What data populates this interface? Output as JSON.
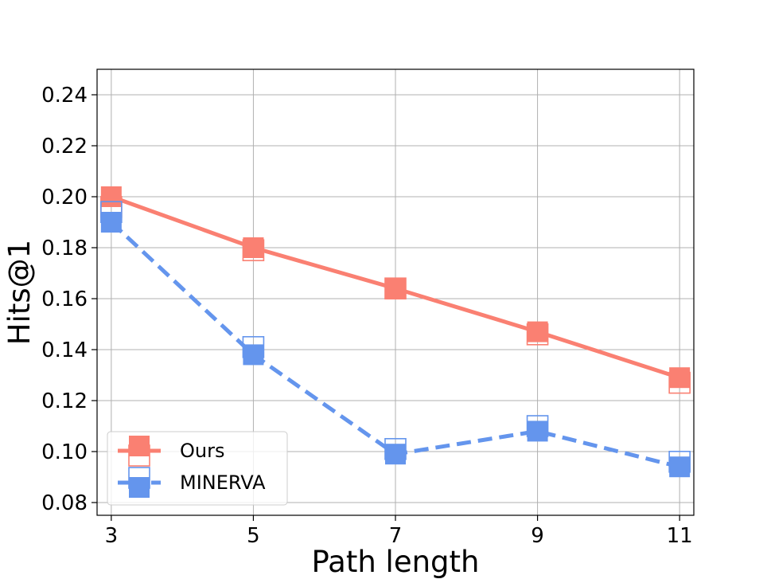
{
  "chart_data": {
    "type": "line",
    "title": "",
    "xlabel": "Path length",
    "ylabel": "Hits@1",
    "x": [
      3,
      5,
      7,
      9,
      11
    ],
    "xticks": [
      "3",
      "5",
      "7",
      "9",
      "11"
    ],
    "yticks": [
      "0.08",
      "0.10",
      "0.12",
      "0.14",
      "0.16",
      "0.18",
      "0.20",
      "0.22",
      "0.24"
    ],
    "xlim": [
      2.8,
      11.2
    ],
    "ylim": [
      0.075,
      0.25
    ],
    "grid": true,
    "legend_position": "lower-left",
    "series": [
      {
        "name": "Ours",
        "color": "#fa8072",
        "line_style": "solid",
        "marker": "square",
        "values": [
          0.2,
          0.18,
          0.164,
          0.147,
          0.129
        ],
        "hollow_values": [
          0.196,
          0.179,
          0.164,
          0.146,
          0.127
        ]
      },
      {
        "name": "MINERVA",
        "color": "#6495ed",
        "line_style": "dashed",
        "marker": "square",
        "values": [
          0.19,
          0.138,
          0.099,
          0.108,
          0.094
        ],
        "hollow_values": [
          0.194,
          0.141,
          0.101,
          0.11,
          0.096
        ]
      }
    ]
  }
}
